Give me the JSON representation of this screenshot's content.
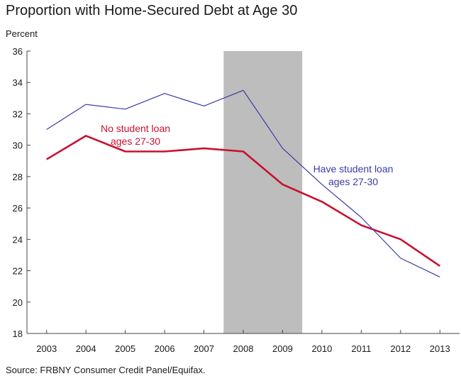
{
  "chart_data": {
    "type": "line",
    "title": "Proportion with Home-Secured Debt at Age 30",
    "ylabel": "Percent",
    "xlabel": "",
    "source": "Source: FRBNY Consumer Credit Panel/Equifax.",
    "x": [
      2003,
      2004,
      2005,
      2006,
      2007,
      2008,
      2009,
      2010,
      2011,
      2012,
      2013
    ],
    "ylim": [
      18,
      36
    ],
    "yticks": [
      18,
      20,
      22,
      24,
      26,
      28,
      30,
      32,
      34,
      36
    ],
    "grid": false,
    "shaded_region": [
      2007.5,
      2009.5
    ],
    "series": [
      {
        "label_lines": [
          "No student loan",
          "ages 27-30"
        ],
        "color": "#c8102e",
        "values": [
          29.1,
          30.6,
          29.6,
          29.6,
          29.8,
          29.6,
          27.5,
          26.4,
          24.9,
          24.0,
          22.3
        ]
      },
      {
        "label_lines": [
          "Have student loan",
          "ages 27-30"
        ],
        "color": "#3a3aa8",
        "values": [
          31.0,
          32.6,
          32.3,
          33.3,
          32.5,
          33.5,
          29.8,
          27.5,
          25.4,
          22.8,
          21.6
        ]
      }
    ]
  }
}
